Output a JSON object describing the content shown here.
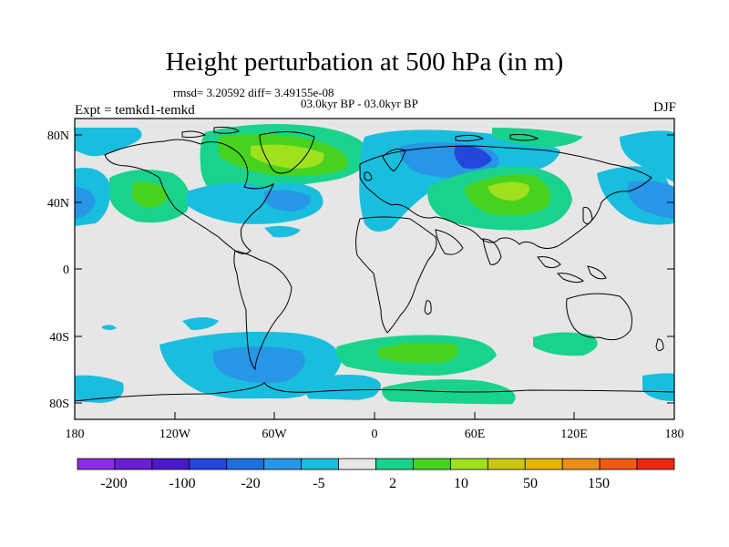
{
  "header": {
    "title": "Height perturbation at 500 hPa (in m)",
    "stats": "rmsd= 3.20592 diff= 3.49155e-08",
    "period": "03.0kyr BP - 03.0kyr BP",
    "experiment": "Expt = temkd1-temkd",
    "season": "DJF"
  },
  "axes": {
    "lat_ticks": [
      "80N",
      "40N",
      "0",
      "40S",
      "80S"
    ],
    "lon_ticks": [
      "180",
      "120W",
      "60W",
      "0",
      "60E",
      "120E",
      "180"
    ]
  },
  "colorbar": {
    "colors": [
      "#8c2de6",
      "#6a1ed2",
      "#4b19c8",
      "#2346dc",
      "#1e6edc",
      "#2896e6",
      "#19bede",
      "#e6e6e6",
      "#19d28c",
      "#46d21e",
      "#a0e11e",
      "#c8c814",
      "#e6b400",
      "#eb8c14",
      "#f05a14",
      "#eb2814"
    ],
    "labels": [
      "-200",
      "-100",
      "-20",
      "-5",
      "2",
      "10",
      "50",
      "150"
    ]
  },
  "contour_colors": {
    "light_blue": "#19bede",
    "mid_blue": "#2896e6",
    "green": "#19d28c",
    "bright_green": "#46d21e",
    "lime": "#a0e11e"
  }
}
